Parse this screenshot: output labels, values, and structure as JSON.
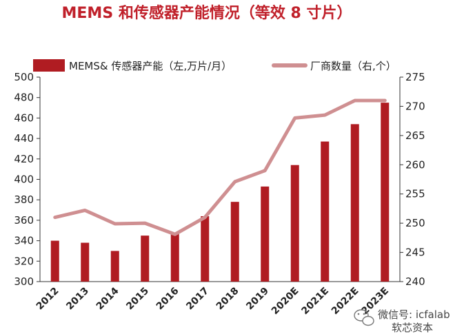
{
  "colors": {
    "bar": "#b01c22",
    "line": "#cf8f91",
    "title": "#c0202a",
    "axis": "#333333"
  },
  "chart_data": {
    "type": "bar",
    "title": "MEMS 和传感器产能情况（等效 8 寸片）",
    "categories": [
      "2012",
      "2013",
      "2014",
      "2015",
      "2016",
      "2017",
      "2018",
      "2019",
      "2020E",
      "2021E",
      "2022E",
      "2023E"
    ],
    "series": [
      {
        "name": "MEMS& 传感器产能（左,万片/月）",
        "type": "bar",
        "axis": "left",
        "values": [
          340,
          338,
          330,
          345,
          347,
          364,
          378,
          393,
          414,
          437,
          454,
          475
        ]
      },
      {
        "name": "厂商数量（右,个）",
        "type": "line",
        "axis": "right",
        "values": [
          251,
          252.2,
          249.9,
          250,
          248.1,
          251,
          257.1,
          259,
          268,
          268.5,
          271,
          271
        ]
      }
    ],
    "ylim_left": [
      300,
      500
    ],
    "yticks_left": [
      "300",
      "320",
      "340",
      "360",
      "380",
      "400",
      "420",
      "440",
      "460",
      "480",
      "500"
    ],
    "ylim_right": [
      240,
      275
    ],
    "yticks_right": [
      "240",
      "245",
      "250",
      "255",
      "260",
      "265",
      "270",
      "275"
    ],
    "legend_position": "top",
    "grid": false
  },
  "watermark": {
    "line1": "微信号: icfalab",
    "line2": "软芯资本",
    "icon": "wechat-icon"
  }
}
